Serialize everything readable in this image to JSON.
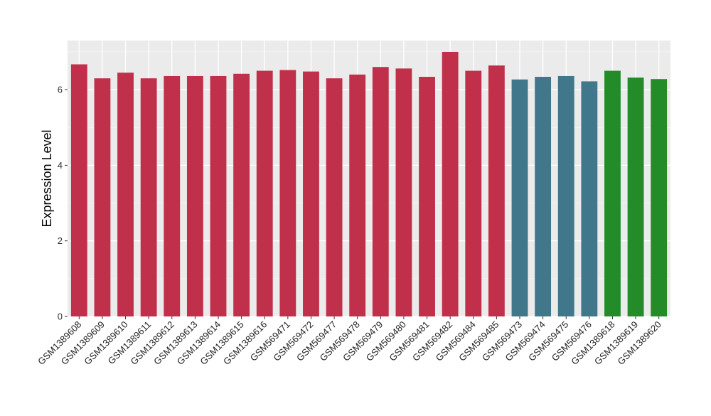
{
  "chart_data": {
    "type": "bar",
    "title": "",
    "xlabel": "",
    "ylabel": "Expression Level",
    "ylim": [
      0,
      7.3
    ],
    "yticks": [
      0,
      2,
      4,
      6
    ],
    "grid": true,
    "legend": "none",
    "colors": {
      "panel_background": "#ebebeb",
      "grid_major": "#ffffff",
      "grid_minor": "#f5f5f5"
    },
    "categories": [
      "GSM1389608",
      "GSM1389609",
      "GSM1389610",
      "GSM1389611",
      "GSM1389612",
      "GSM1389613",
      "GSM1389614",
      "GSM1389615",
      "GSM1389616",
      "GSM569471",
      "GSM569472",
      "GSM569477",
      "GSM569478",
      "GSM569479",
      "GSM569480",
      "GSM569481",
      "GSM569482",
      "GSM569484",
      "GSM569485",
      "GSM569473",
      "GSM569474",
      "GSM569475",
      "GSM569476",
      "GSM1389618",
      "GSM1389619",
      "GSM1389620"
    ],
    "values": [
      6.67,
      6.3,
      6.45,
      6.3,
      6.36,
      6.36,
      6.36,
      6.42,
      6.5,
      6.52,
      6.48,
      6.3,
      6.4,
      6.6,
      6.56,
      6.34,
      7.0,
      6.5,
      6.64,
      6.27,
      6.34,
      6.36,
      6.22,
      6.5,
      6.32,
      6.28
    ],
    "bar_colors": [
      "#c1304a",
      "#c1304a",
      "#c1304a",
      "#c1304a",
      "#c1304a",
      "#c1304a",
      "#c1304a",
      "#c1304a",
      "#c1304a",
      "#c1304a",
      "#c1304a",
      "#c1304a",
      "#c1304a",
      "#c1304a",
      "#c1304a",
      "#c1304a",
      "#c1304a",
      "#c1304a",
      "#c1304a",
      "#41778a",
      "#41778a",
      "#41778a",
      "#41778a",
      "#238b28",
      "#238b28",
      "#238b28"
    ]
  }
}
